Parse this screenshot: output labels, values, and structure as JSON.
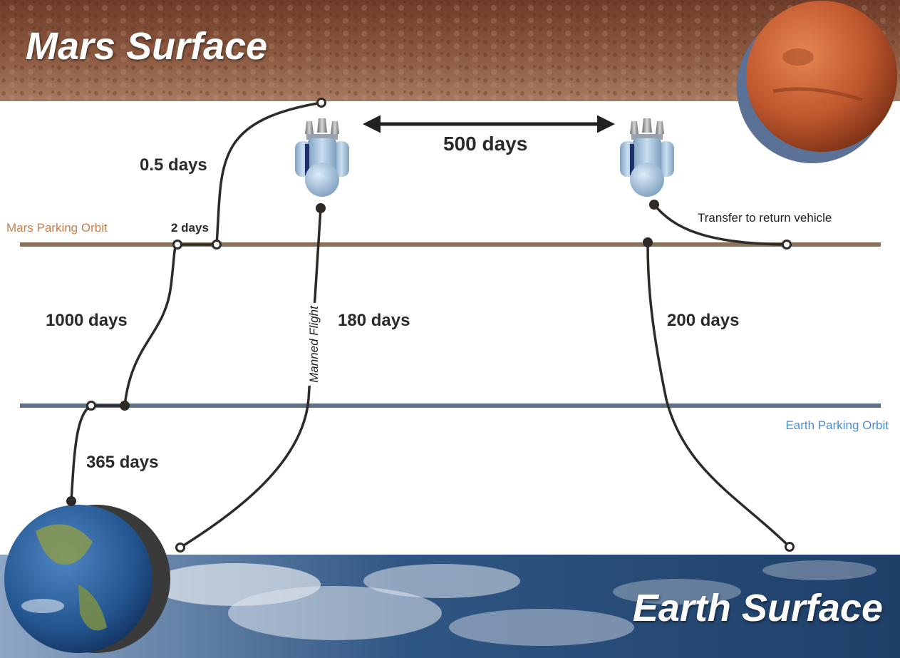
{
  "title_top": "Mars Surface",
  "title_bottom": "Earth Surface",
  "orbits": {
    "mars": {
      "label": "Mars Parking Orbit",
      "color": "#8b7158",
      "label_color": "#c97f4e"
    },
    "earth": {
      "label": "Earth Parking Orbit",
      "color": "#5d7187",
      "label_color": "#4a8ed0"
    }
  },
  "durations": {
    "descent": "0.5 days",
    "orbit_transfer": "2 days",
    "cargo_transit": "1000 days",
    "earth_to_orbit": "365 days",
    "outbound": "180 days",
    "return": "200 days",
    "stay": "500 days"
  },
  "path_labels": {
    "manned": "Manned Flight",
    "transfer": "Transfer to return vehicle"
  },
  "colors": {
    "path": "#2e2a28",
    "mars_surface": "#7a4a33",
    "earth_surface": "#34557e",
    "spacecraft": "#9bbbd8"
  }
}
